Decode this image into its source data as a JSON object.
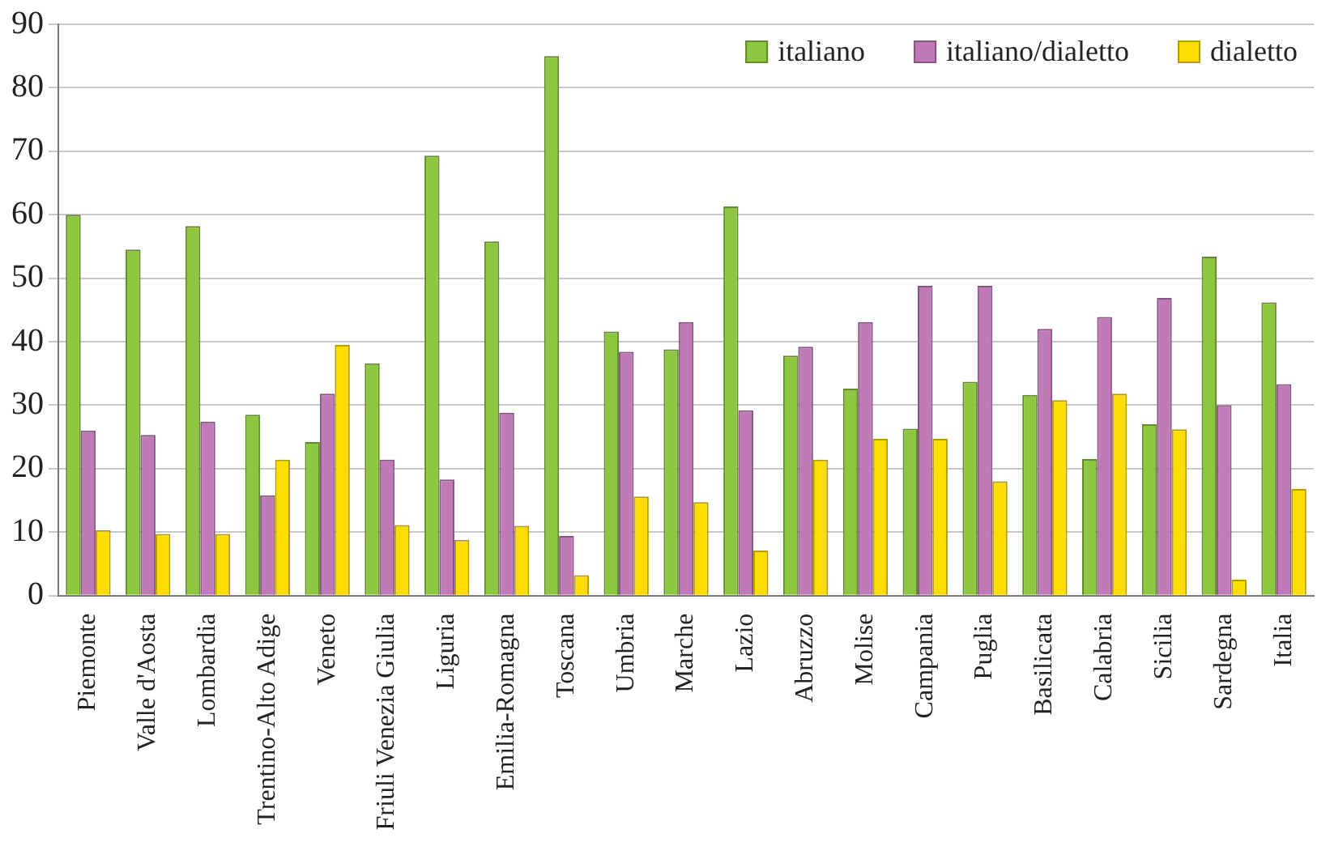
{
  "chart_data": {
    "type": "bar",
    "categories": [
      "Piemonte",
      "Valle d'Aosta",
      "Lombardia",
      "Trentino-Alto Adige",
      "Veneto",
      "Friuli Venezia Giulia",
      "Liguria",
      "Emilia-Romagna",
      "Toscana",
      "Umbria",
      "Marche",
      "Lazio",
      "Abruzzo",
      "Molise",
      "Campania",
      "Puglia",
      "Basilicata",
      "Calabria",
      "Sicilia",
      "Sardegna",
      "Italia"
    ],
    "series": [
      {
        "name": "italiano",
        "color": "#8dc63f",
        "values": [
          60,
          54.5,
          58.2,
          28.5,
          24.2,
          36.6,
          69.3,
          55.8,
          85,
          41.6,
          38.8,
          61.3,
          37.8,
          32.6,
          26.3,
          33.7,
          31.6,
          21.5,
          27,
          53.4,
          46.2
        ]
      },
      {
        "name": "italiano/dialetto",
        "color": "#c07ab8",
        "values": [
          26,
          25.3,
          27.4,
          15.8,
          31.8,
          21.4,
          18.3,
          28.8,
          9.4,
          38.4,
          43.1,
          29.2,
          39.2,
          43.1,
          48.8,
          48.8,
          42,
          43.9,
          46.9,
          30,
          33.3
        ]
      },
      {
        "name": "dialetto",
        "color": "#ffdd00",
        "values": [
          10.3,
          9.7,
          9.7,
          21.4,
          39.5,
          11.1,
          8.8,
          11,
          3.2,
          15.6,
          14.7,
          7.1,
          21.4,
          24.7,
          24.7,
          18,
          30.8,
          31.8,
          26.2,
          2.5,
          16.8
        ]
      }
    ],
    "ylim": [
      0,
      90
    ],
    "yticks": [
      0,
      10,
      20,
      30,
      40,
      50,
      60,
      70,
      80,
      90
    ],
    "grid": "y",
    "legend": "top right"
  }
}
